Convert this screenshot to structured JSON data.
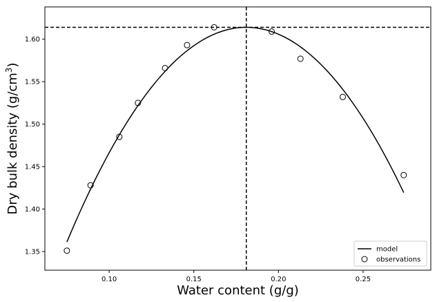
{
  "chart_data": {
    "type": "scatter",
    "title": "",
    "xlabel": "Water content (g/g)",
    "ylabel_main": "Dry bulk density (g/cm",
    "ylabel_sup": "3",
    "ylabel_end": ")",
    "xlim": [
      0.062,
      0.29
    ],
    "ylim": [
      1.328,
      1.638
    ],
    "x_ticks": [
      {
        "value": 0.1,
        "label": "0.10"
      },
      {
        "value": 0.15,
        "label": "0.15"
      },
      {
        "value": 0.2,
        "label": "0.20"
      },
      {
        "value": 0.25,
        "label": "0.25"
      }
    ],
    "y_ticks": [
      {
        "value": 1.35,
        "label": "1.35"
      },
      {
        "value": 1.4,
        "label": "1.40"
      },
      {
        "value": 1.45,
        "label": "1.45"
      },
      {
        "value": 1.5,
        "label": "1.50"
      },
      {
        "value": 1.55,
        "label": "1.55"
      },
      {
        "value": 1.6,
        "label": "1.60"
      }
    ],
    "grid": false,
    "legend_position": "lower-right",
    "series": [
      {
        "name": "model",
        "kind": "line",
        "color": "#000000",
        "curve": {
          "x_start": 0.075,
          "x_end": 0.274,
          "x_peak": 0.181,
          "y_peak": 1.614,
          "curvature": 22.5
        }
      },
      {
        "name": "observations",
        "kind": "scatter",
        "marker": "open-circle",
        "color": "#000000",
        "points": [
          {
            "x": 0.075,
            "y": 1.351
          },
          {
            "x": 0.089,
            "y": 1.428
          },
          {
            "x": 0.106,
            "y": 1.485
          },
          {
            "x": 0.117,
            "y": 1.525
          },
          {
            "x": 0.133,
            "y": 1.566
          },
          {
            "x": 0.146,
            "y": 1.593
          },
          {
            "x": 0.162,
            "y": 1.614
          },
          {
            "x": 0.196,
            "y": 1.609
          },
          {
            "x": 0.213,
            "y": 1.577
          },
          {
            "x": 0.238,
            "y": 1.532
          },
          {
            "x": 0.274,
            "y": 1.44
          }
        ]
      }
    ],
    "reference_lines": {
      "vertical_x": 0.181,
      "horizontal_y": 1.614,
      "style": "dashed",
      "color": "#000000"
    }
  }
}
